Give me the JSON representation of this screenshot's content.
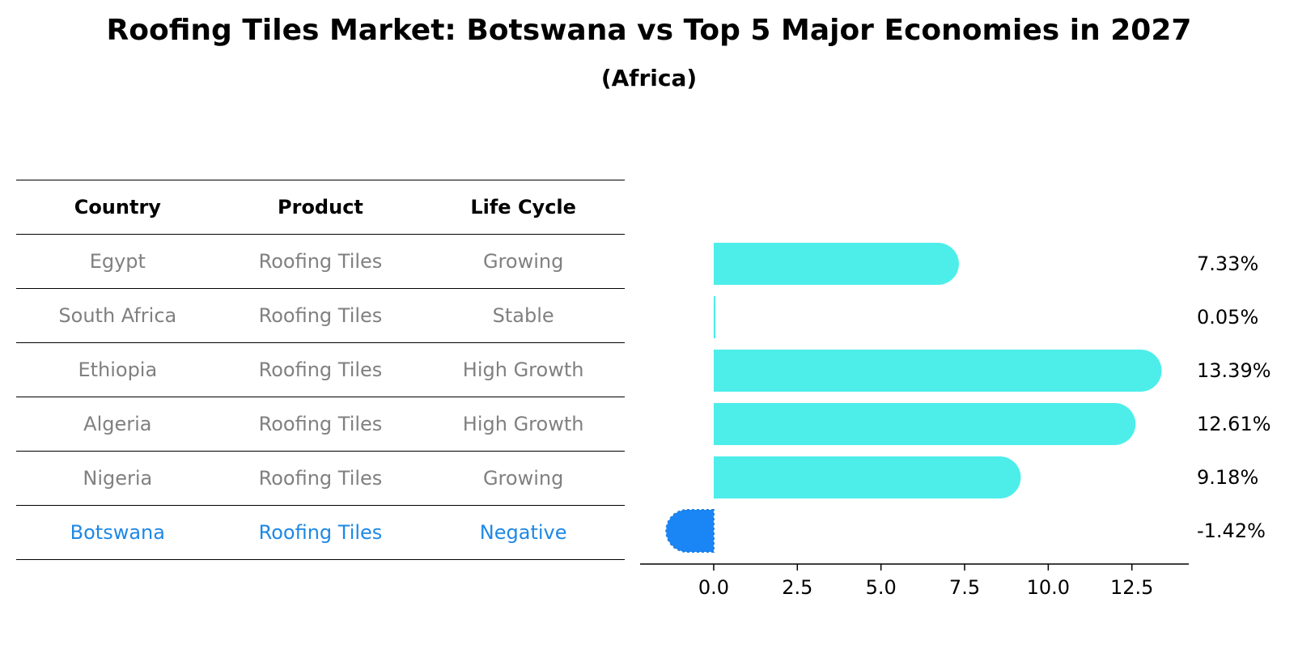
{
  "title": "Roofing Tiles Market: Botswana vs Top 5 Major Economies in 2027",
  "subtitle": "(Africa)",
  "table": {
    "headers": [
      "Country",
      "Product",
      "Life Cycle"
    ],
    "rows": [
      {
        "country": "Egypt",
        "product": "Roofing Tiles",
        "life_cycle": "Growing"
      },
      {
        "country": "South Africa",
        "product": "Roofing Tiles",
        "life_cycle": "Stable"
      },
      {
        "country": "Ethiopia",
        "product": "Roofing Tiles",
        "life_cycle": "High Growth"
      },
      {
        "country": "Algeria",
        "product": "Roofing Tiles",
        "life_cycle": "High Growth"
      },
      {
        "country": "Nigeria",
        "product": "Roofing Tiles",
        "life_cycle": "Growing"
      },
      {
        "country": "Botswana",
        "product": "Roofing Tiles",
        "life_cycle": "Negative"
      }
    ]
  },
  "colors": {
    "bar_default": "#4deeea",
    "bar_highlight": "#1a86f5",
    "text_highlight": "#1e88e5",
    "text_muted": "#808080"
  },
  "chart_data": {
    "type": "bar",
    "orientation": "horizontal",
    "categories": [
      "Egypt",
      "South Africa",
      "Ethiopia",
      "Algeria",
      "Nigeria",
      "Botswana"
    ],
    "values": [
      7.33,
      0.05,
      13.39,
      12.61,
      9.18,
      -1.42
    ],
    "value_labels": [
      "7.33%",
      "0.05%",
      "13.39%",
      "12.61%",
      "9.18%",
      "-1.42%"
    ],
    "highlight": "Botswana",
    "xlim": [
      -2.2,
      14.2
    ],
    "xticks": [
      0.0,
      2.5,
      5.0,
      7.5,
      10.0,
      12.5
    ],
    "xtick_labels": [
      "0.0",
      "2.5",
      "5.0",
      "7.5",
      "10.0",
      "12.5"
    ],
    "xlabel": "",
    "ylabel": "",
    "grid": false
  }
}
